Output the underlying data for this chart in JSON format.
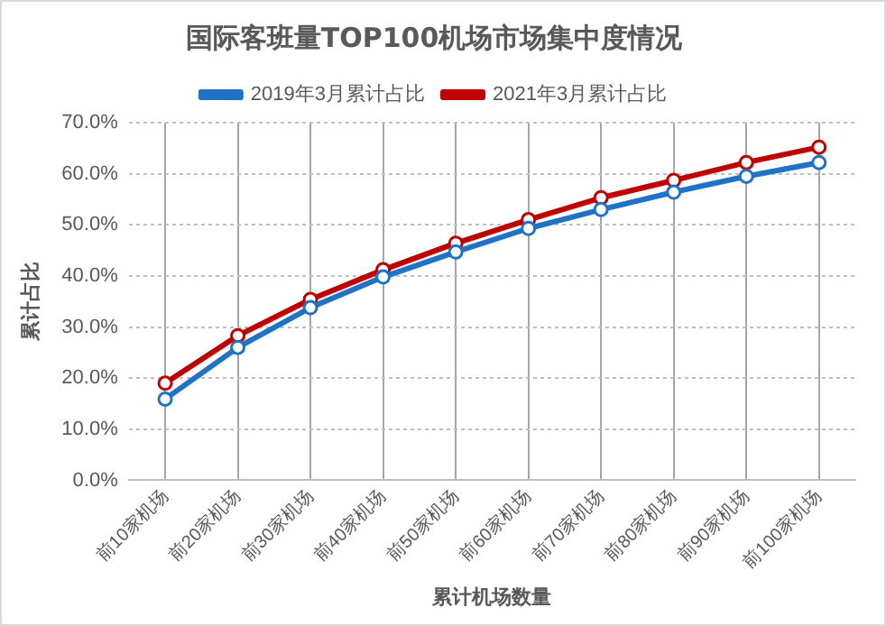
{
  "chart_data": {
    "type": "line",
    "title": "国际客班量TOP100机场市场集中度情况",
    "xlabel": "累计机场数量",
    "ylabel": "累计占比",
    "categories": [
      "前10家机场",
      "前20家机场",
      "前30家机场",
      "前40家机场",
      "前50家机场",
      "前60家机场",
      "前70家机场",
      "前80家机场",
      "前90家机场",
      "前100家机场"
    ],
    "series": [
      {
        "name": "2019年3月累计占比",
        "color": "#1f72c4",
        "values": [
          15.9,
          26.0,
          33.8,
          39.8,
          44.7,
          49.3,
          53.0,
          56.4,
          59.5,
          62.2
        ]
      },
      {
        "name": "2021年3月累计占比",
        "color": "#c00000",
        "values": [
          19.0,
          28.3,
          35.4,
          41.2,
          46.4,
          51.0,
          55.3,
          58.7,
          62.2,
          65.2
        ]
      }
    ],
    "ylim": [
      0,
      70
    ],
    "yticks": [
      {
        "value": 0,
        "label": "0.0%"
      },
      {
        "value": 10,
        "label": "10.0%"
      },
      {
        "value": 20,
        "label": "20.0%"
      },
      {
        "value": 30,
        "label": "30.0%"
      },
      {
        "value": 40,
        "label": "40.0%"
      },
      {
        "value": 50,
        "label": "50.0%"
      },
      {
        "value": 60,
        "label": "60.0%"
      },
      {
        "value": 70,
        "label": "70.0%"
      }
    ],
    "grid": true,
    "legend": "top",
    "marker": "circle",
    "line_style": "solid"
  }
}
